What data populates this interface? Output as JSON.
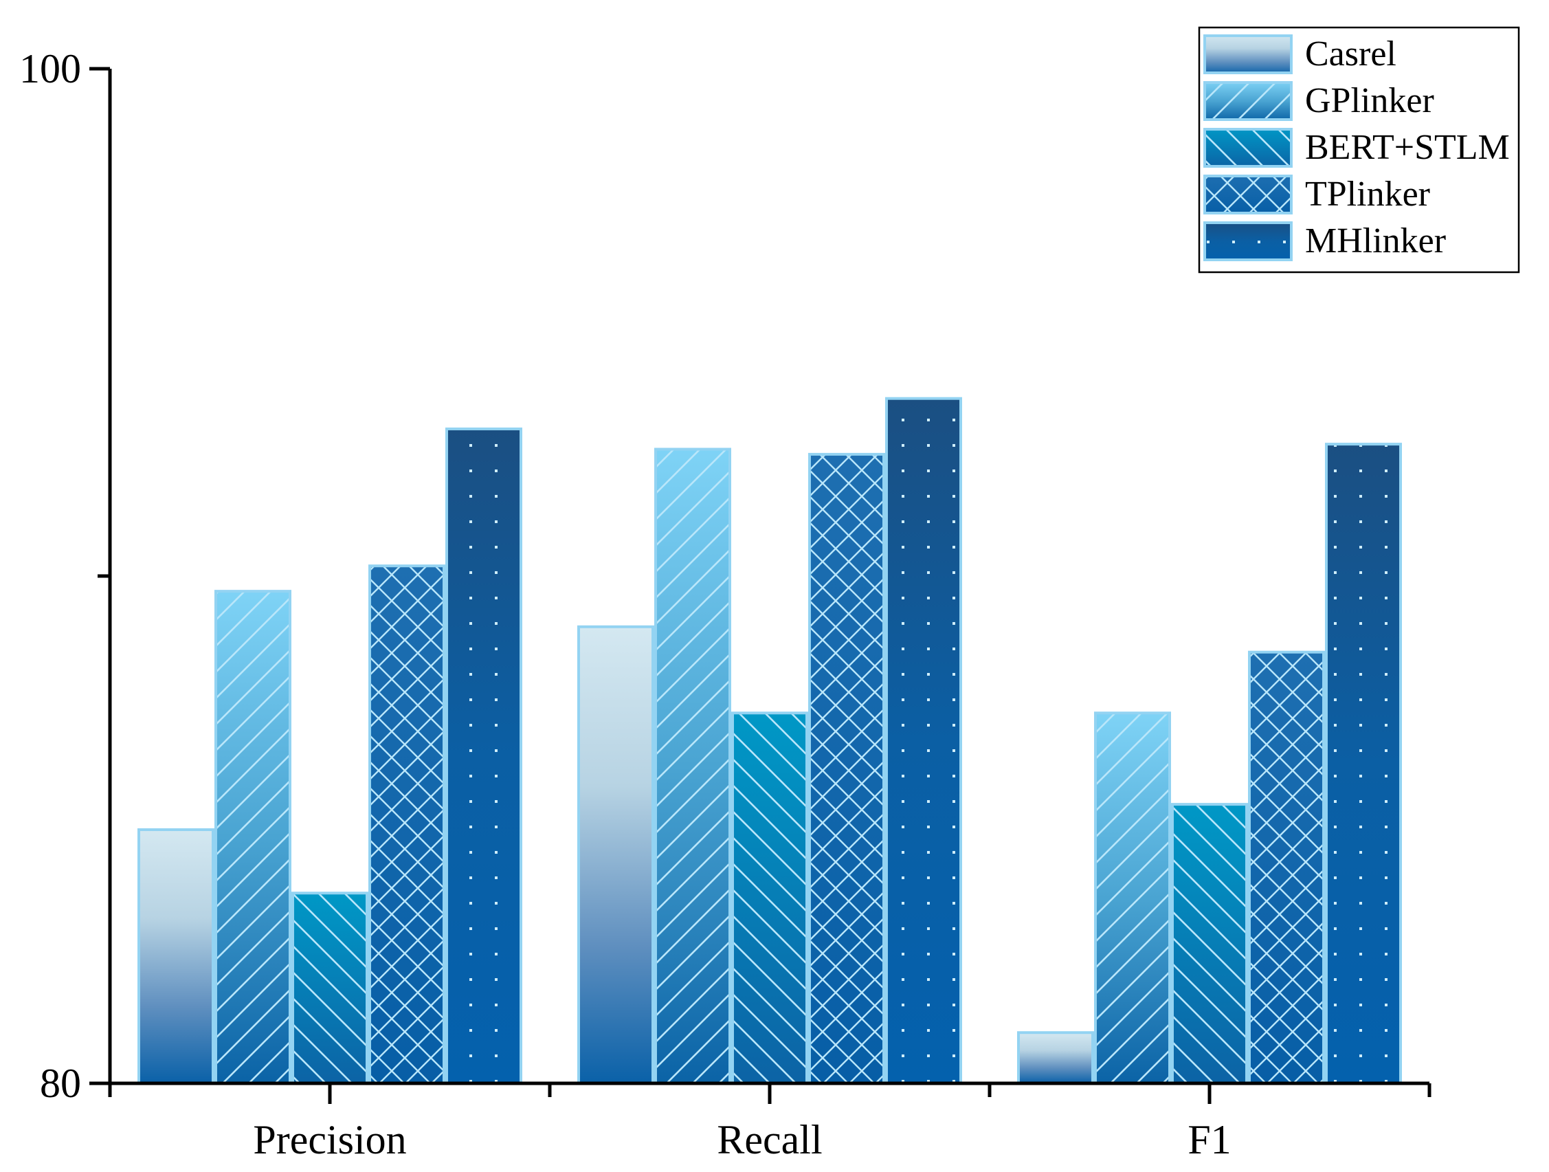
{
  "chart_data": {
    "type": "bar",
    "categories": [
      "Precision",
      "Recall",
      "F1"
    ],
    "series": [
      {
        "name": "Casrel",
        "values": [
          85.0,
          89.0,
          81.0
        ],
        "fill": "grad-casrel",
        "pattern": "none",
        "color": "#c8e0ec"
      },
      {
        "name": "GPlinker",
        "values": [
          89.7,
          92.5,
          87.3
        ],
        "fill": "grad-gplinker",
        "pattern": "diag-right",
        "color": "#7acff3"
      },
      {
        "name": "BERT+STLM",
        "values": [
          83.75,
          87.3,
          85.5
        ],
        "fill": "grad-bert",
        "pattern": "diag-left",
        "color": "#0093c4"
      },
      {
        "name": "TPlinker",
        "values": [
          90.2,
          92.4,
          88.5
        ],
        "fill": "grad-tplinker",
        "pattern": "crosshatch",
        "color": "#1a64a6"
      },
      {
        "name": "MHlinker",
        "values": [
          92.9,
          93.5,
          92.6
        ],
        "fill": "grad-mhlinker",
        "pattern": "dots",
        "color": "#175594"
      }
    ],
    "y_ticks": [
      {
        "value": 80,
        "label": "80"
      },
      {
        "value": 90,
        "label": ""
      },
      {
        "value": 100,
        "label": "100"
      }
    ],
    "ylim": [
      80,
      100
    ],
    "grid": false,
    "legend_position": "top-right",
    "title": "",
    "xlabel": "",
    "ylabel": ""
  }
}
